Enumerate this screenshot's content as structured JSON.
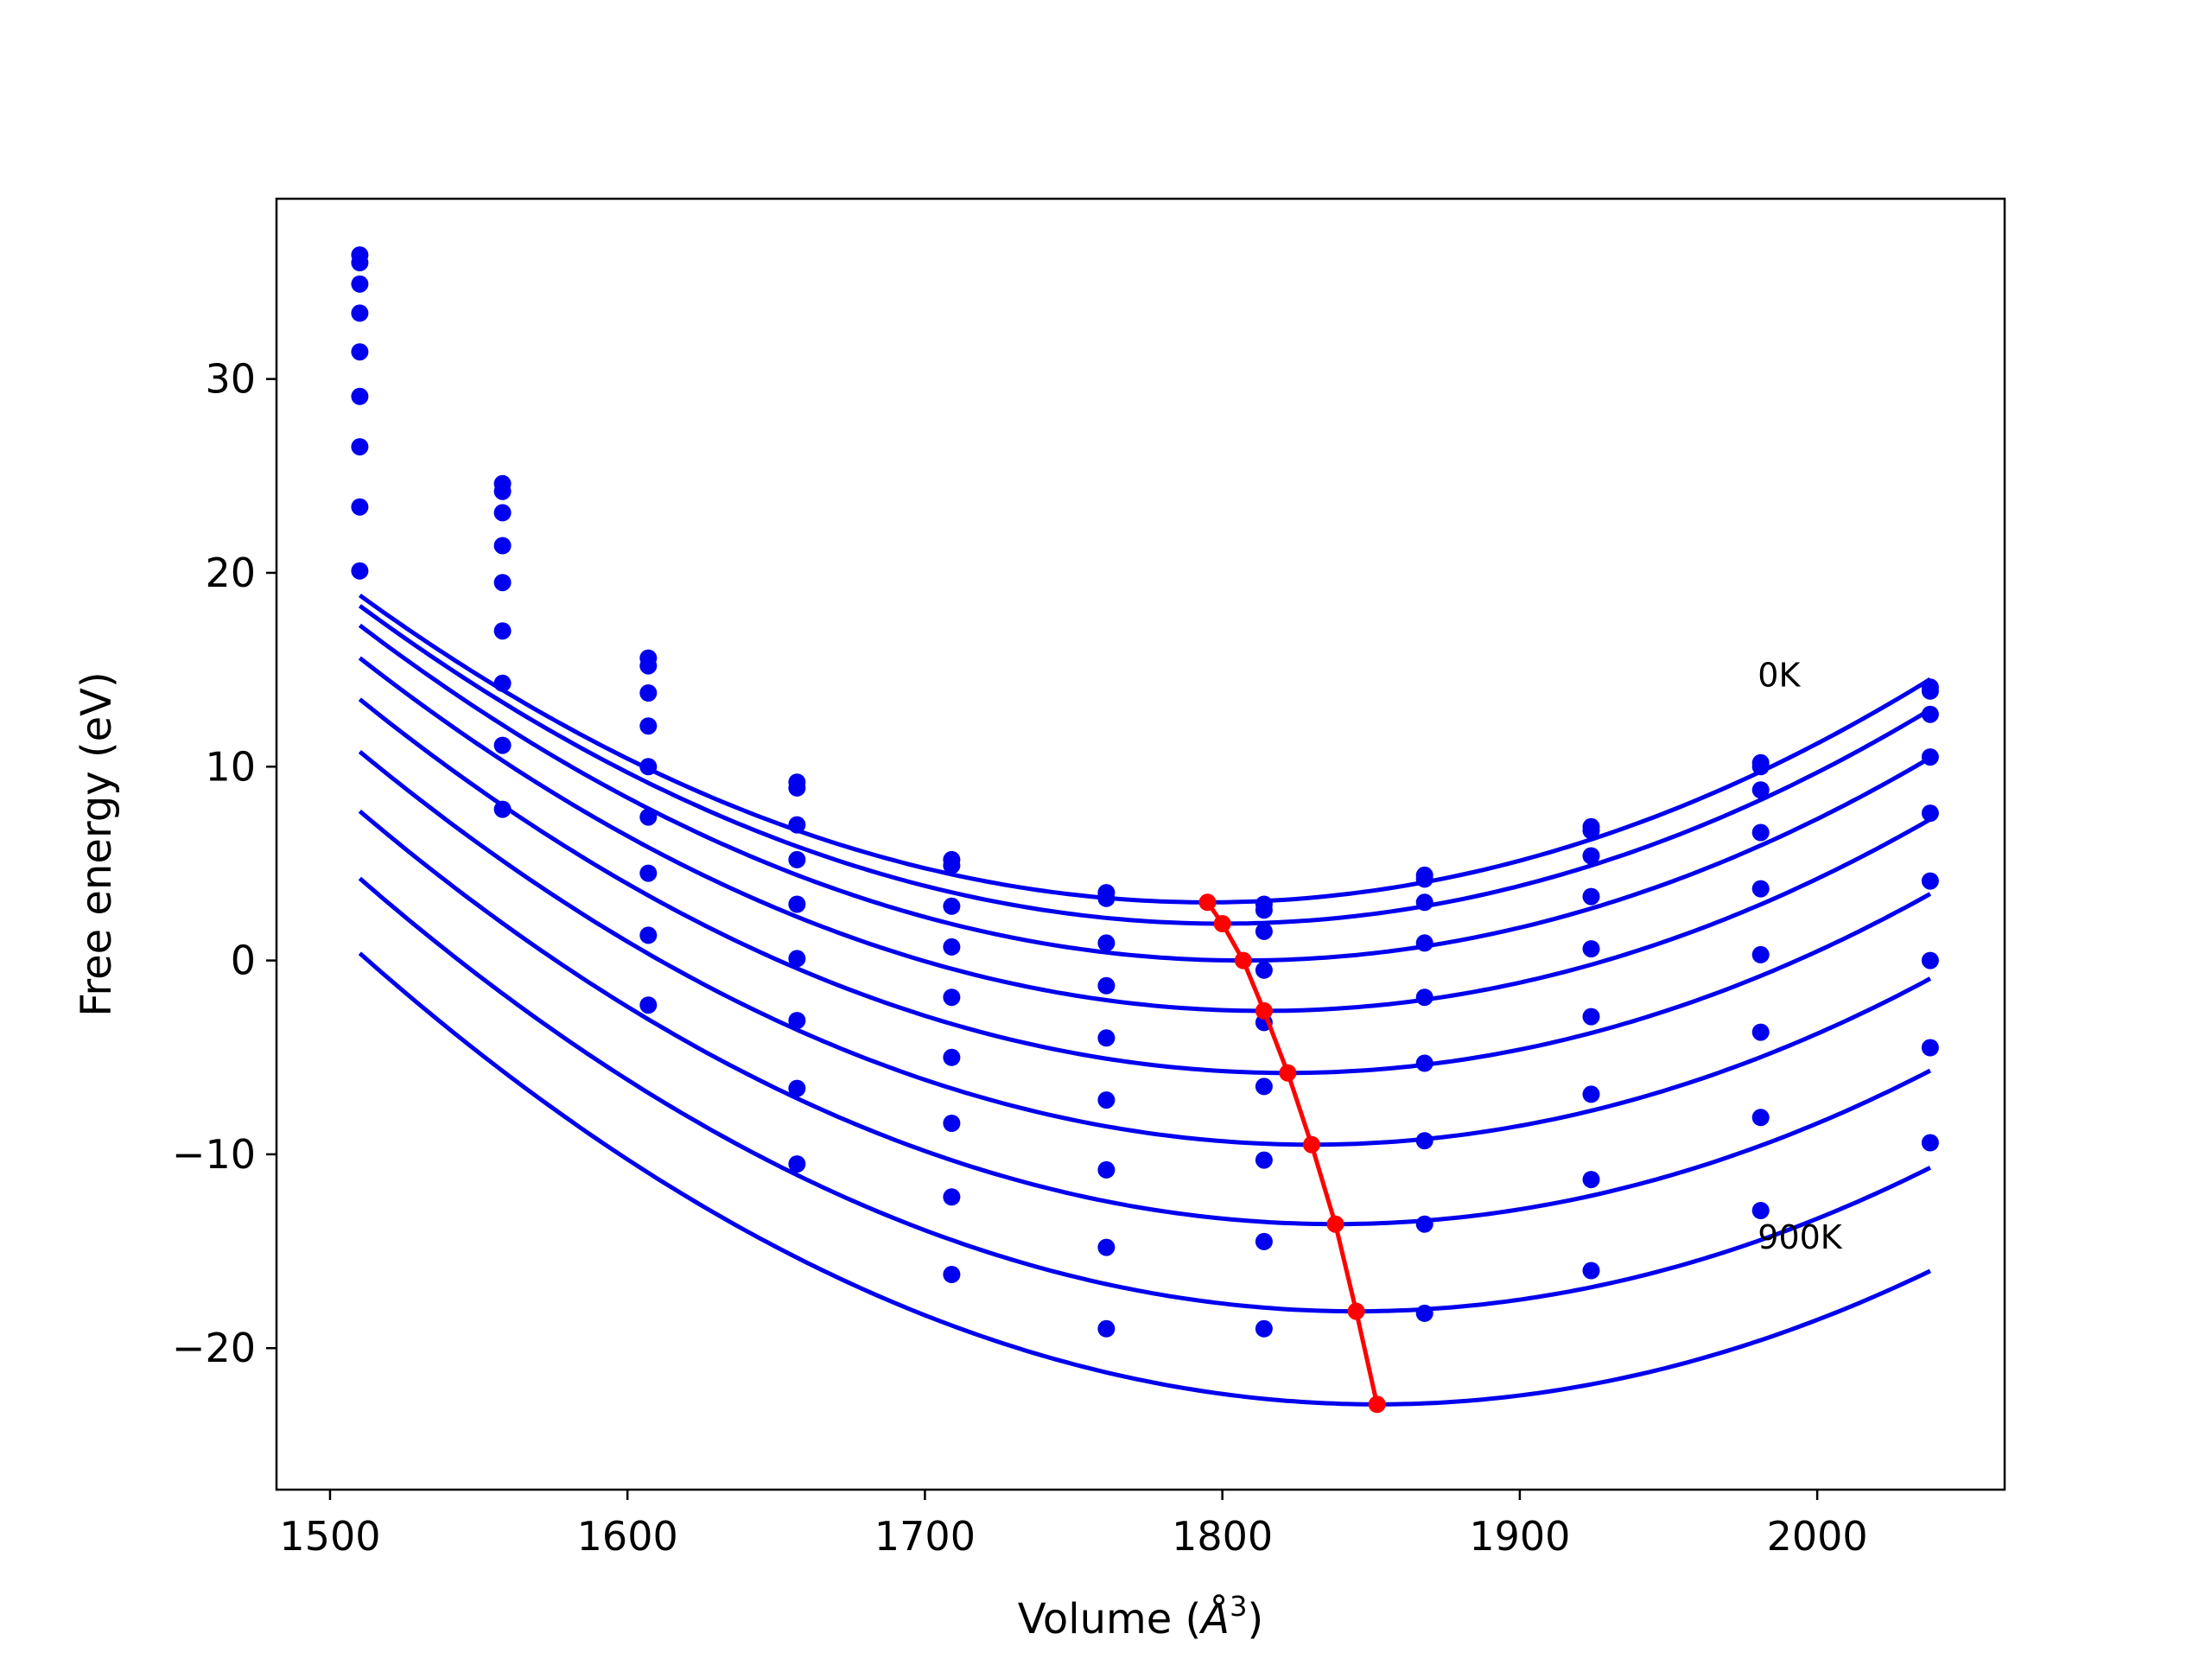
{
  "chart_data": {
    "type": "line",
    "title": "",
    "xlabel": "Volume (",
    "xlabel_symbol": "Å",
    "xlabel_exponent": "3",
    "xlabel_close": ")",
    "ylabel": "Free energy (eV)",
    "xlim": [
      1482,
      2063
    ],
    "ylim": [
      -27.3,
      39.3
    ],
    "xticks": [
      1500,
      1600,
      1700,
      1800,
      1900,
      2000
    ],
    "xtick_labels": [
      "1500",
      "1600",
      "1700",
      "1800",
      "1900",
      "2000"
    ],
    "yticks": [
      -20,
      -10,
      0,
      10,
      20,
      30
    ],
    "ytick_labels": [
      "−20",
      "−10",
      "0",
      "10",
      "20",
      "30"
    ],
    "grid": false,
    "legend": "none",
    "annotations": [
      {
        "text": "0K",
        "x": 1980,
        "y": 14.6
      },
      {
        "text": "900K",
        "x": 1980,
        "y": -14.4
      }
    ],
    "volumes": [
      1510,
      1558,
      1607,
      1657,
      1709,
      1761,
      1814,
      1868,
      1924,
      1981,
      2038
    ],
    "series": [
      {
        "values": [
          36.4,
          24.6,
          15.6,
          9.2,
          5.2,
          3.5,
          2.9,
          4.4,
          6.9,
          10.2,
          14.1
        ]
      },
      {
        "values": [
          36.0,
          24.2,
          15.2,
          8.9,
          4.9,
          3.2,
          2.6,
          4.2,
          6.7,
          10.0,
          13.9
        ]
      },
      {
        "values": [
          34.9,
          23.1,
          13.8,
          7.0,
          2.8,
          0.9,
          1.5,
          3.0,
          5.4,
          8.8,
          12.7
        ]
      },
      {
        "values": [
          33.4,
          21.4,
          12.1,
          5.2,
          0.7,
          -1.3,
          -0.5,
          0.9,
          3.3,
          6.6,
          10.5
        ]
      },
      {
        "values": [
          31.4,
          19.5,
          10.0,
          2.9,
          -1.9,
          -4.0,
          -3.2,
          -1.9,
          0.6,
          3.7,
          7.6
        ]
      },
      {
        "values": [
          29.1,
          17.0,
          7.4,
          0.1,
          -5.0,
          -7.2,
          -6.5,
          -5.3,
          -2.9,
          0.3,
          4.1
        ]
      },
      {
        "values": [
          26.5,
          14.3,
          4.5,
          -3.1,
          -8.4,
          -10.8,
          -10.3,
          -9.3,
          -6.9,
          -3.7,
          0.0
        ]
      },
      {
        "values": [
          23.4,
          11.1,
          1.3,
          -6.6,
          -12.2,
          -14.8,
          -14.5,
          -13.6,
          -11.3,
          -8.1,
          -4.5
        ]
      },
      {
        "values": [
          20.1,
          7.8,
          -2.3,
          -10.5,
          -16.2,
          -19.0,
          -19.0,
          -18.2,
          -16.0,
          -12.9,
          -9.4
        ]
      }
    ],
    "fit_curves": [
      {
        "a": 0.000195,
        "v0": 1795,
        "fmin": 3.0
      },
      {
        "a": 0.000195,
        "v0": 1800,
        "fmin": 1.9
      },
      {
        "a": 0.000196,
        "v0": 1807,
        "fmin": 0.0
      },
      {
        "a": 0.000197,
        "v0": 1814,
        "fmin": -2.6
      },
      {
        "a": 0.000198,
        "v0": 1822,
        "fmin": -5.8
      },
      {
        "a": 0.000198,
        "v0": 1830,
        "fmin": -9.5
      },
      {
        "a": 0.000198,
        "v0": 1838,
        "fmin": -13.6
      },
      {
        "a": 0.000199,
        "v0": 1845,
        "fmin": -18.1
      },
      {
        "a": 0.000199,
        "v0": 1852,
        "fmin": -22.9
      }
    ],
    "equilibrium_series": {
      "x": [
        1795,
        1800,
        1807,
        1814,
        1822,
        1830,
        1838,
        1845,
        1852
      ],
      "y": [
        3.0,
        1.9,
        0.0,
        -2.6,
        -5.8,
        -9.5,
        -13.6,
        -18.1,
        -22.9
      ]
    },
    "colors": {
      "data": "#0000ee",
      "equilibrium": "#ff0000",
      "axes": "#000000"
    }
  }
}
